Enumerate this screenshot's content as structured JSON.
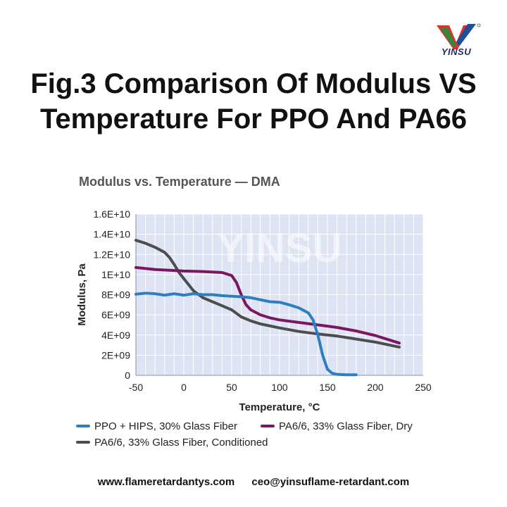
{
  "logo": {
    "text": "YINSU",
    "icon": "yinsu-logo-icon"
  },
  "title": {
    "line1": "Fig.3 Comparison Of Modulus VS",
    "line2": "Temperature For PPO And PA66"
  },
  "watermark": "YINSU",
  "footer": {
    "website": "www.flameretardantys.com",
    "email": "ceo@yinsuflame-retardant.com"
  },
  "chart_data": {
    "type": "line",
    "title": "Modulus vs. Temperature — DMA",
    "xlabel": "Temperature, °C",
    "ylabel": "Modulus, Pa",
    "xlim": [
      -50,
      250
    ],
    "ylim": [
      0,
      16000000000
    ],
    "xticks": [
      -50,
      0,
      50,
      100,
      150,
      200,
      250
    ],
    "xtick_labels": [
      "-50",
      "0",
      "50",
      "100",
      "150",
      "200",
      "250"
    ],
    "yticks": [
      0,
      2000000000,
      4000000000,
      6000000000,
      8000000000,
      10000000000,
      12000000000,
      14000000000,
      16000000000
    ],
    "ytick_labels": [
      "0",
      "2E+09",
      "4E+09",
      "6E+09",
      "8E+09",
      "1E+10",
      "1.2E+10",
      "1.4E+10",
      "1.6E+10"
    ],
    "grid": true,
    "legend_position": "bottom",
    "background": "#dde3f3",
    "series": [
      {
        "name": "PPO + HIPS, 30% Glass Fiber",
        "color": "#2e7fc1",
        "x": [
          -50,
          -40,
          -30,
          -20,
          -10,
          0,
          10,
          20,
          30,
          40,
          50,
          60,
          70,
          80,
          90,
          100,
          110,
          120,
          130,
          135,
          140,
          145,
          150,
          155,
          160,
          170,
          180
        ],
        "y": [
          8050000000,
          8150000000,
          8100000000,
          7950000000,
          8100000000,
          7950000000,
          8100000000,
          8000000000,
          8000000000,
          7900000000,
          7850000000,
          7800000000,
          7700000000,
          7500000000,
          7300000000,
          7250000000,
          7000000000,
          6700000000,
          6200000000,
          5500000000,
          4000000000,
          2000000000,
          600000000,
          200000000,
          100000000,
          50000000,
          50000000
        ]
      },
      {
        "name": "PA6/6, 33% Glass Fiber, Dry",
        "color": "#7b1660",
        "x": [
          -50,
          -30,
          -10,
          0,
          20,
          40,
          50,
          55,
          60,
          65,
          70,
          80,
          90,
          100,
          120,
          140,
          160,
          180,
          200,
          225
        ],
        "y": [
          10700000000,
          10500000000,
          10400000000,
          10350000000,
          10300000000,
          10200000000,
          9900000000,
          9200000000,
          8000000000,
          7000000000,
          6500000000,
          6000000000,
          5700000000,
          5500000000,
          5250000000,
          5000000000,
          4750000000,
          4400000000,
          3950000000,
          3200000000
        ]
      },
      {
        "name": "PA6/6, 33% Glass Fiber, Conditioned",
        "color": "#4d4d4d",
        "x": [
          -50,
          -40,
          -30,
          -20,
          -15,
          -10,
          -5,
          0,
          10,
          20,
          30,
          40,
          50,
          60,
          70,
          80,
          100,
          120,
          140,
          160,
          180,
          200,
          225
        ],
        "y": [
          13400000000,
          13100000000,
          12700000000,
          12200000000,
          11700000000,
          11000000000,
          10200000000,
          9600000000,
          8400000000,
          7700000000,
          7300000000,
          6900000000,
          6500000000,
          5800000000,
          5400000000,
          5100000000,
          4700000000,
          4350000000,
          4100000000,
          3900000000,
          3600000000,
          3300000000,
          2800000000
        ]
      }
    ]
  }
}
